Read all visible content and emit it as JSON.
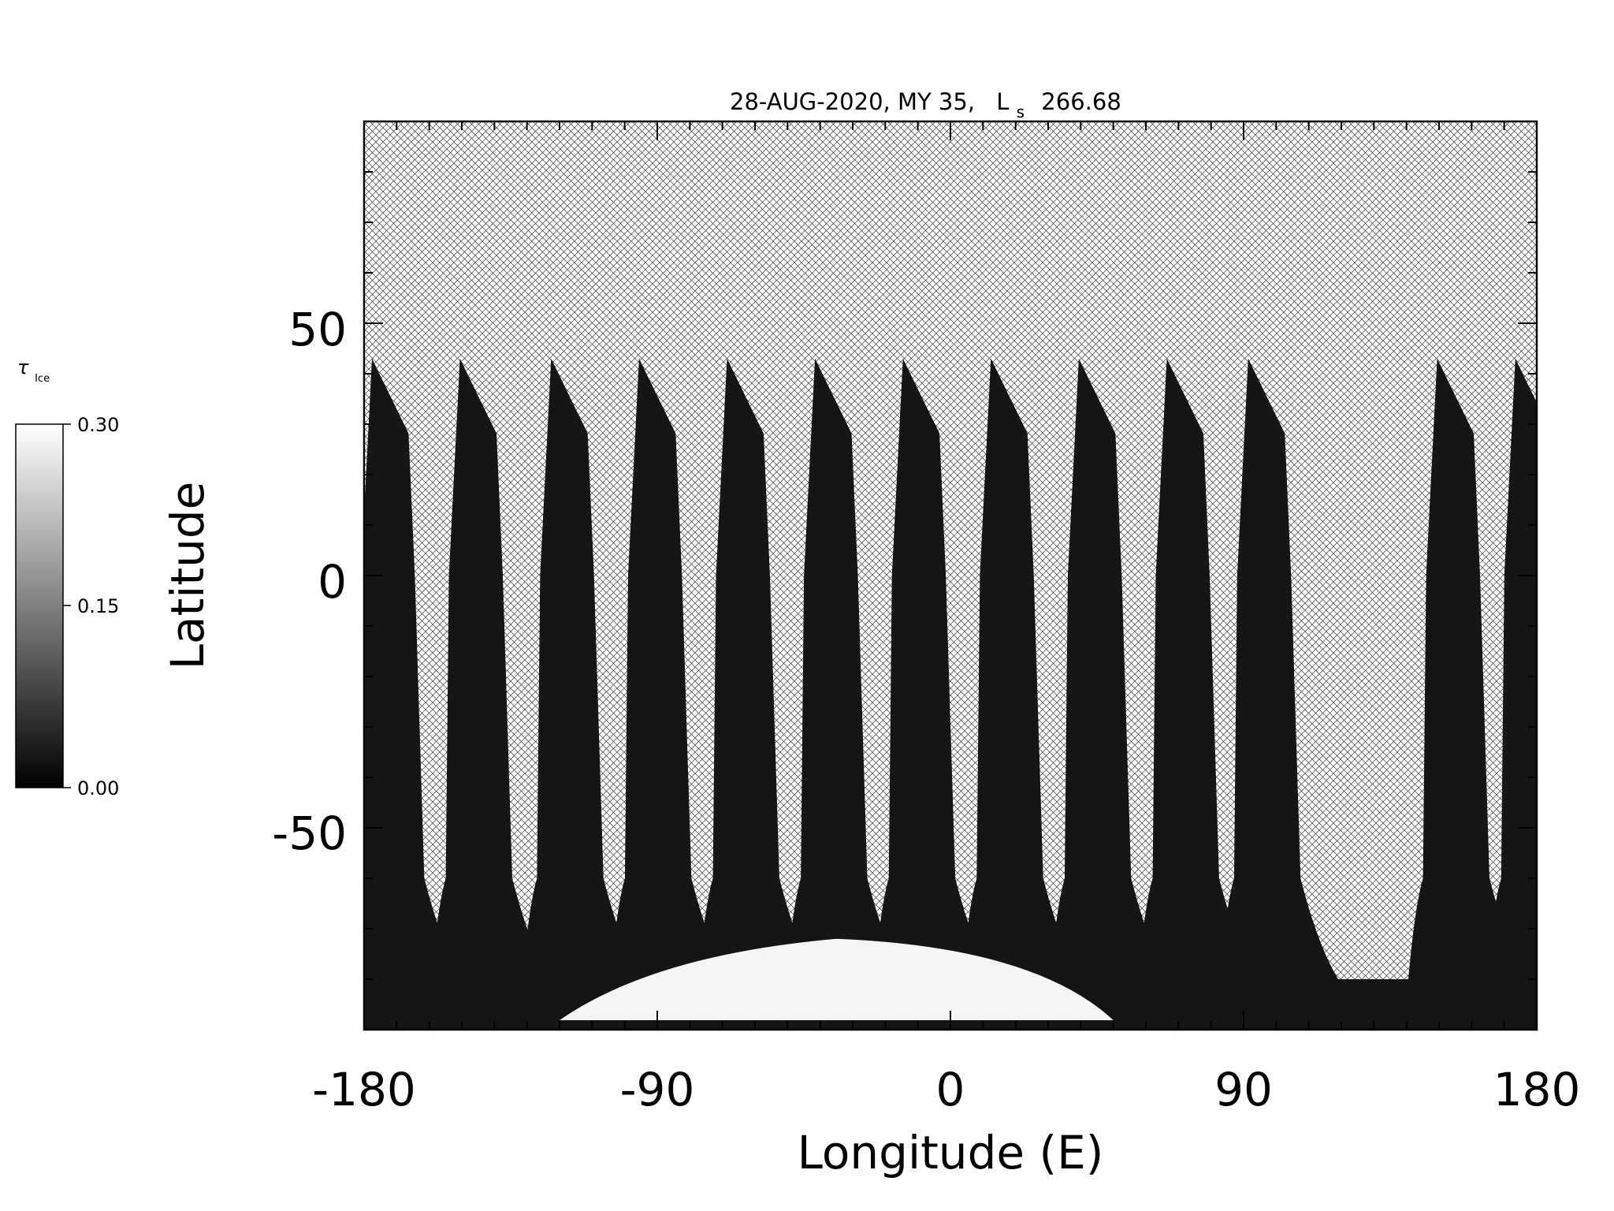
{
  "title": {
    "date": "28-AUG-2020, MY 35,",
    "ls_symbol": "L",
    "ls_subscript": "s",
    "ls_value": "266.68"
  },
  "chart_data": {
    "type": "heatmap",
    "xlabel": "Longitude (E)",
    "ylabel": "Latitude",
    "xlim": [
      -180,
      180
    ],
    "ylim": [
      -90,
      90
    ],
    "x_ticks": [
      "-180",
      "-90",
      "0",
      "90",
      "180"
    ],
    "y_ticks": [
      "50",
      "0",
      "-50"
    ],
    "x_tick_values": [
      -180,
      -90,
      0,
      90,
      180
    ],
    "y_tick_values": [
      50,
      0,
      -50
    ],
    "x_minor_step": 10,
    "y_minor_step": 10,
    "no_data_pattern": "crosshatch",
    "swaths_center_longitude_at_equator": [
      -171,
      -144,
      -116,
      -89,
      -62,
      -35,
      -8,
      19,
      46,
      73,
      98,
      156,
      180
    ],
    "swath_north_edge_latitude": 43,
    "polar_cap": {
      "lon_range": [
        -120,
        50
      ],
      "lat_top": -72,
      "value": 0.3
    },
    "colorbar": {
      "label_symbol": "τ",
      "label_subscript": "Ice",
      "min": 0.0,
      "max": 0.3,
      "ticks": [
        "0.30",
        "0.15",
        "0.00"
      ],
      "tick_values": [
        0.3,
        0.15,
        0.0
      ],
      "colormap": [
        "#000000",
        "#ffffff"
      ]
    }
  }
}
